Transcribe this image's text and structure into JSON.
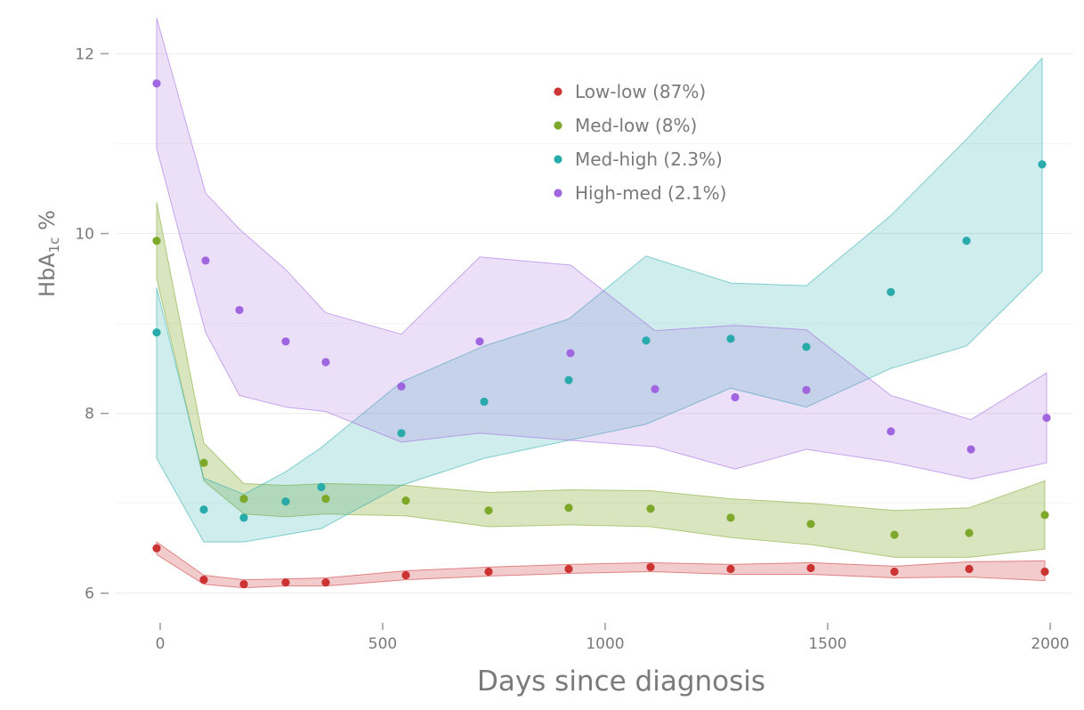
{
  "chart_data": {
    "type": "scatter",
    "xlabel": "Days since diagnosis",
    "ylabel_main": "HbA",
    "ylabel_sub": "1c",
    "ylabel_suffix": " %",
    "xlim": [
      -100,
      2050
    ],
    "ylim": [
      5.75,
      12.4
    ],
    "x_ticks": [
      0,
      500,
      1000,
      1500,
      2000
    ],
    "y_ticks": [
      6,
      8,
      10,
      12
    ],
    "grid": true,
    "legend_position": "top-center",
    "series": [
      {
        "name": "Low-low (87%)",
        "color": "#cc3333",
        "band_opacity": 0.25,
        "points": [
          [
            -8,
            6.5
          ],
          [
            98,
            6.15
          ],
          [
            188,
            6.1
          ],
          [
            282,
            6.12
          ],
          [
            372,
            6.12
          ],
          [
            552,
            6.2
          ],
          [
            738,
            6.24
          ],
          [
            918,
            6.27
          ],
          [
            1102,
            6.29
          ],
          [
            1282,
            6.27
          ],
          [
            1462,
            6.28
          ],
          [
            1650,
            6.24
          ],
          [
            1818,
            6.27
          ],
          [
            1988,
            6.24
          ]
        ],
        "band": [
          [
            -8,
            6.43,
            6.57
          ],
          [
            98,
            6.1,
            6.2
          ],
          [
            188,
            6.06,
            6.15
          ],
          [
            282,
            6.08,
            6.16
          ],
          [
            372,
            6.08,
            6.17
          ],
          [
            552,
            6.15,
            6.25
          ],
          [
            738,
            6.19,
            6.29
          ],
          [
            918,
            6.22,
            6.32
          ],
          [
            1102,
            6.24,
            6.34
          ],
          [
            1282,
            6.21,
            6.32
          ],
          [
            1462,
            6.21,
            6.34
          ],
          [
            1650,
            6.17,
            6.3
          ],
          [
            1818,
            6.18,
            6.35
          ],
          [
            1988,
            6.14,
            6.36
          ]
        ]
      },
      {
        "name": "Med-low (8%)",
        "color": "#7ea82a",
        "band_opacity": 0.3,
        "points": [
          [
            -8,
            9.92
          ],
          [
            98,
            7.45
          ],
          [
            188,
            7.05
          ],
          [
            282,
            7.02
          ],
          [
            372,
            7.05
          ],
          [
            552,
            7.03
          ],
          [
            738,
            6.92
          ],
          [
            918,
            6.95
          ],
          [
            1102,
            6.94
          ],
          [
            1282,
            6.84
          ],
          [
            1462,
            6.77
          ],
          [
            1650,
            6.65
          ],
          [
            1818,
            6.67
          ],
          [
            1988,
            6.87
          ]
        ],
        "band": [
          [
            -8,
            9.5,
            10.35
          ],
          [
            98,
            7.25,
            7.67
          ],
          [
            188,
            6.88,
            7.22
          ],
          [
            282,
            6.85,
            7.2
          ],
          [
            372,
            6.88,
            7.22
          ],
          [
            552,
            6.86,
            7.2
          ],
          [
            738,
            6.74,
            7.12
          ],
          [
            918,
            6.76,
            7.15
          ],
          [
            1102,
            6.74,
            7.14
          ],
          [
            1282,
            6.62,
            7.05
          ],
          [
            1462,
            6.54,
            7.0
          ],
          [
            1650,
            6.4,
            6.92
          ],
          [
            1818,
            6.4,
            6.95
          ],
          [
            1988,
            6.49,
            7.25
          ]
        ]
      },
      {
        "name": "Med-high (2.3%)",
        "color": "#2aabab",
        "band_opacity": 0.22,
        "points": [
          [
            -8,
            8.9
          ],
          [
            98,
            6.93
          ],
          [
            188,
            6.84
          ],
          [
            282,
            7.02
          ],
          [
            362,
            7.18
          ],
          [
            542,
            7.78
          ],
          [
            728,
            8.13
          ],
          [
            918,
            8.37
          ],
          [
            1092,
            8.81
          ],
          [
            1282,
            8.83
          ],
          [
            1452,
            8.74
          ],
          [
            1642,
            9.35
          ],
          [
            1812,
            9.92
          ],
          [
            1982,
            10.77
          ]
        ],
        "band": [
          [
            -8,
            7.5,
            9.4
          ],
          [
            98,
            6.57,
            7.28
          ],
          [
            188,
            6.57,
            7.1
          ],
          [
            282,
            6.65,
            7.35
          ],
          [
            362,
            6.72,
            7.62
          ],
          [
            542,
            7.2,
            8.35
          ],
          [
            728,
            7.5,
            8.75
          ],
          [
            918,
            7.7,
            9.05
          ],
          [
            1092,
            7.88,
            9.75
          ],
          [
            1282,
            8.28,
            9.45
          ],
          [
            1452,
            8.07,
            9.42
          ],
          [
            1642,
            8.5,
            10.2
          ],
          [
            1812,
            8.75,
            11.05
          ],
          [
            1982,
            9.58,
            11.95
          ]
        ]
      },
      {
        "name": "High-med (2.1%)",
        "color": "#a066e0",
        "band_opacity": 0.2,
        "points": [
          [
            -8,
            11.67
          ],
          [
            102,
            9.7
          ],
          [
            178,
            9.15
          ],
          [
            282,
            8.8
          ],
          [
            372,
            8.57
          ],
          [
            542,
            8.3
          ],
          [
            718,
            8.8
          ],
          [
            922,
            8.67
          ],
          [
            1112,
            8.27
          ],
          [
            1292,
            8.18
          ],
          [
            1452,
            8.26
          ],
          [
            1642,
            7.8
          ],
          [
            1822,
            7.6
          ],
          [
            1992,
            7.95
          ]
        ],
        "band": [
          [
            -8,
            10.95,
            12.4
          ],
          [
            102,
            8.9,
            10.45
          ],
          [
            178,
            8.2,
            10.05
          ],
          [
            282,
            8.07,
            9.6
          ],
          [
            372,
            8.02,
            9.12
          ],
          [
            542,
            7.68,
            8.88
          ],
          [
            718,
            7.78,
            9.74
          ],
          [
            922,
            7.7,
            9.65
          ],
          [
            1112,
            7.63,
            8.92
          ],
          [
            1292,
            7.38,
            8.98
          ],
          [
            1452,
            7.6,
            8.93
          ],
          [
            1642,
            7.46,
            8.2
          ],
          [
            1822,
            7.27,
            7.93
          ],
          [
            1992,
            7.45,
            8.45
          ]
        ]
      }
    ]
  }
}
